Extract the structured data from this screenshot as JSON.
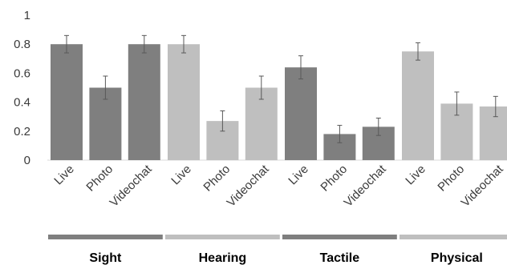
{
  "chart_data": {
    "type": "bar",
    "ylim": [
      0,
      1
    ],
    "yticks": [
      "0",
      "0.2",
      "0.4",
      "0.6",
      "0.8",
      "1"
    ],
    "ytick_values": [
      0,
      0.2,
      0.4,
      0.6,
      0.8,
      1
    ],
    "grid": false,
    "colors": {
      "dark": "#7f7f7f",
      "light": "#bfbfbf",
      "error": "#595959"
    },
    "groups": [
      {
        "name": "Sight",
        "shade": "dark",
        "bars": [
          {
            "label": "Live",
            "value": 0.8,
            "error": 0.06
          },
          {
            "label": "Photo",
            "value": 0.5,
            "error": 0.08
          },
          {
            "label": "Videochat",
            "value": 0.8,
            "error": 0.06
          }
        ]
      },
      {
        "name": "Hearing",
        "shade": "light",
        "bars": [
          {
            "label": "Live",
            "value": 0.8,
            "error": 0.06
          },
          {
            "label": "Photo",
            "value": 0.27,
            "error": 0.07
          },
          {
            "label": "Videochat",
            "value": 0.5,
            "error": 0.08
          }
        ]
      },
      {
        "name": "Tactile",
        "shade": "dark",
        "bars": [
          {
            "label": "Live",
            "value": 0.64,
            "error": 0.08
          },
          {
            "label": "Photo",
            "value": 0.18,
            "error": 0.06
          },
          {
            "label": "Videochat",
            "value": 0.23,
            "error": 0.06
          }
        ]
      },
      {
        "name": "Physical",
        "shade": "light",
        "bars": [
          {
            "label": "Live",
            "value": 0.75,
            "error": 0.06
          },
          {
            "label": "Photo",
            "value": 0.39,
            "error": 0.08
          },
          {
            "label": "Videochat",
            "value": 0.37,
            "error": 0.07
          }
        ]
      }
    ]
  }
}
